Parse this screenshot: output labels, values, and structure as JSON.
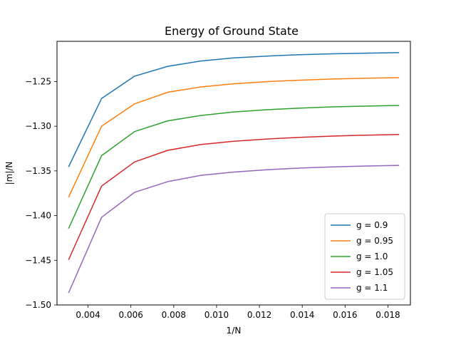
{
  "chart_data": {
    "type": "line",
    "title": "Energy of Ground State",
    "xlabel": "1/N",
    "ylabel": "|m|/N",
    "xlim": [
      0.00255,
      0.01905
    ],
    "ylim": [
      -1.5,
      -1.205
    ],
    "xticks": [
      0.004,
      0.006,
      0.008,
      0.01,
      0.012,
      0.014,
      0.016,
      0.018
    ],
    "xtick_labels": [
      "0.004",
      "0.006",
      "0.008",
      "0.010",
      "0.012",
      "0.014",
      "0.016",
      "0.018"
    ],
    "yticks": [
      -1.5,
      -1.45,
      -1.4,
      -1.35,
      -1.3,
      -1.25
    ],
    "ytick_labels": [
      "−1.50",
      "−1.45",
      "−1.40",
      "−1.35",
      "−1.30",
      "−1.25"
    ],
    "grid": false,
    "legend_position": "bottom-right",
    "x": [
      0.0031,
      0.00463,
      0.00617,
      0.00772,
      0.00926,
      0.0108,
      0.01235,
      0.0139,
      0.01543,
      0.01697,
      0.0185
    ],
    "series": [
      {
        "name": "g = 0.9",
        "color": "#1f77b4",
        "values": [
          -1.345,
          -1.269,
          -1.244,
          -1.233,
          -1.227,
          -1.2235,
          -1.2215,
          -1.22,
          -1.219,
          -1.2183,
          -1.2177
        ]
      },
      {
        "name": "g = 0.95",
        "color": "#ff7f0e",
        "values": [
          -1.379,
          -1.3,
          -1.275,
          -1.262,
          -1.256,
          -1.2525,
          -1.2501,
          -1.2485,
          -1.2472,
          -1.2463,
          -1.2457
        ]
      },
      {
        "name": "g = 1.0",
        "color": "#2ca02c",
        "values": [
          -1.414,
          -1.333,
          -1.306,
          -1.294,
          -1.288,
          -1.284,
          -1.2815,
          -1.2797,
          -1.2784,
          -1.2775,
          -1.2768
        ]
      },
      {
        "name": "g = 1.05",
        "color": "#d62728",
        "values": [
          -1.449,
          -1.367,
          -1.34,
          -1.327,
          -1.3205,
          -1.3168,
          -1.3143,
          -1.3124,
          -1.311,
          -1.31,
          -1.3093
        ]
      },
      {
        "name": "g = 1.1",
        "color": "#9467bd",
        "values": [
          -1.486,
          -1.402,
          -1.374,
          -1.362,
          -1.355,
          -1.3513,
          -1.3487,
          -1.3468,
          -1.3455,
          -1.3445,
          -1.3438
        ]
      }
    ]
  }
}
